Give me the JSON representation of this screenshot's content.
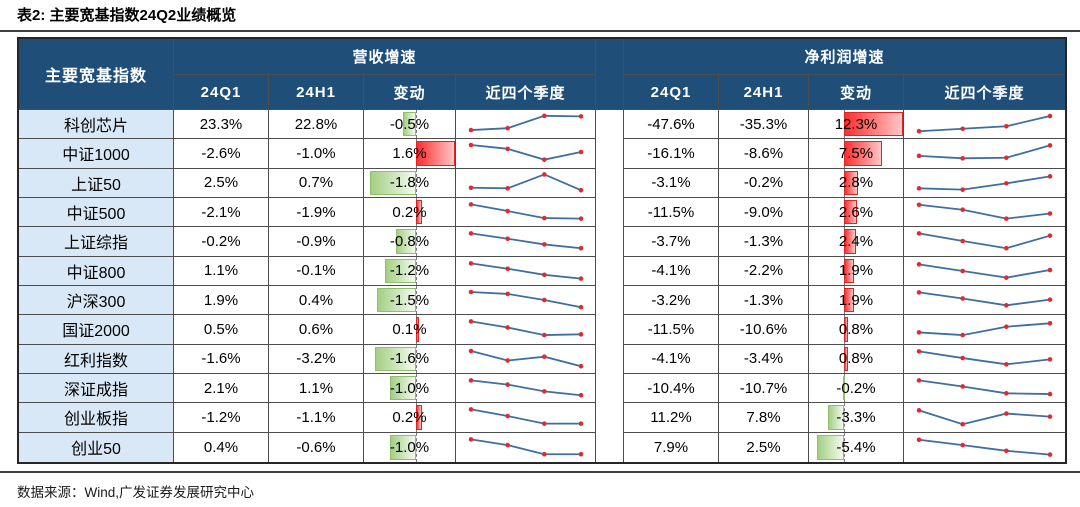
{
  "title": "表2:  主要宽基指数24Q2业绩概览",
  "source": "数据来源：Wind,广发证券发展研究中心",
  "colors": {
    "header_bg": "#1F4E79",
    "header_text": "#FFFFFF",
    "row_label_bg": "#D9E8F6",
    "bar_positive": "#FF2E2E",
    "bar_negative": "#A3CF83",
    "spark_line": "#3D6FA3",
    "spark_marker": "#DF2B30"
  },
  "table": {
    "index_header": "主要宽基指数",
    "groups": [
      {
        "title": "营收增速"
      },
      {
        "title": "净利润增速"
      }
    ],
    "subheaders": [
      "24Q1",
      "24H1",
      "变动",
      "近四个季度"
    ],
    "rows": [
      {
        "name": "科创芯片",
        "rev_q1": "23.3%",
        "rev_h1": "22.8%",
        "rev_chg": "-0.5%",
        "rev_spark": [
          0.18,
          0.28,
          0.93,
          0.9
        ],
        "np_q1": "-47.6%",
        "np_h1": "-35.3%",
        "np_chg": "12.3%",
        "np_spark": [
          0.12,
          0.25,
          0.38,
          0.92
        ]
      },
      {
        "name": "中证1000",
        "rev_q1": "-2.6%",
        "rev_h1": "-1.0%",
        "rev_chg": "1.6%",
        "rev_spark": [
          0.92,
          0.72,
          0.15,
          0.55
        ],
        "np_q1": "-16.1%",
        "np_h1": "-8.6%",
        "np_chg": "7.5%",
        "np_spark": [
          0.35,
          0.22,
          0.25,
          0.9
        ]
      },
      {
        "name": "上证50",
        "rev_q1": "2.5%",
        "rev_h1": "0.7%",
        "rev_chg": "-1.8%",
        "rev_spark": [
          0.25,
          0.22,
          0.95,
          0.12
        ],
        "np_q1": "-3.1%",
        "np_h1": "-0.2%",
        "np_chg": "2.8%",
        "np_spark": [
          0.22,
          0.15,
          0.48,
          0.85
        ]
      },
      {
        "name": "中证500",
        "rev_q1": "-2.1%",
        "rev_h1": "-1.9%",
        "rev_chg": "0.2%",
        "rev_spark": [
          0.9,
          0.55,
          0.18,
          0.15
        ],
        "np_q1": "-11.5%",
        "np_h1": "-9.0%",
        "np_chg": "2.6%",
        "np_spark": [
          0.88,
          0.62,
          0.15,
          0.42
        ]
      },
      {
        "name": "上证综指",
        "rev_q1": "-0.2%",
        "rev_h1": "-0.9%",
        "rev_chg": "-0.8%",
        "rev_spark": [
          0.9,
          0.62,
          0.32,
          0.12
        ],
        "np_q1": "-3.7%",
        "np_h1": "-1.3%",
        "np_chg": "2.4%",
        "np_spark": [
          0.9,
          0.5,
          0.12,
          0.78
        ]
      },
      {
        "name": "中证800",
        "rev_q1": "1.1%",
        "rev_h1": "-0.1%",
        "rev_chg": "-1.2%",
        "rev_spark": [
          0.9,
          0.62,
          0.3,
          0.1
        ],
        "np_q1": "-4.1%",
        "np_h1": "-2.2%",
        "np_chg": "1.9%",
        "np_spark": [
          0.85,
          0.5,
          0.15,
          0.55
        ]
      },
      {
        "name": "沪深300",
        "rev_q1": "1.9%",
        "rev_h1": "0.4%",
        "rev_chg": "-1.5%",
        "rev_spark": [
          0.92,
          0.82,
          0.5,
          0.12
        ],
        "np_q1": "-3.2%",
        "np_h1": "-1.3%",
        "np_chg": "1.9%",
        "np_spark": [
          0.9,
          0.58,
          0.22,
          0.52
        ]
      },
      {
        "name": "国证2000",
        "rev_q1": "0.5%",
        "rev_h1": "0.6%",
        "rev_chg": "0.1%",
        "rev_spark": [
          0.9,
          0.58,
          0.18,
          0.22
        ],
        "np_q1": "-11.5%",
        "np_h1": "-10.6%",
        "np_chg": "0.8%",
        "np_spark": [
          0.32,
          0.18,
          0.62,
          0.8
        ]
      },
      {
        "name": "红利指数",
        "rev_q1": "-1.6%",
        "rev_h1": "-3.2%",
        "rev_chg": "-1.6%",
        "rev_spark": [
          0.92,
          0.42,
          0.62,
          0.12
        ],
        "np_q1": "-4.1%",
        "np_h1": "-3.4%",
        "np_chg": "0.8%",
        "np_spark": [
          0.9,
          0.55,
          0.22,
          0.48
        ]
      },
      {
        "name": "深证成指",
        "rev_q1": "2.1%",
        "rev_h1": "1.1%",
        "rev_chg": "-1.0%",
        "rev_spark": [
          0.9,
          0.68,
          0.32,
          0.12
        ],
        "np_q1": "-10.4%",
        "np_h1": "-10.7%",
        "np_chg": "-0.2%",
        "np_spark": [
          0.9,
          0.58,
          0.22,
          0.18
        ]
      },
      {
        "name": "创业板指",
        "rev_q1": "-1.2%",
        "rev_h1": "-1.1%",
        "rev_chg": "0.2%",
        "rev_spark": [
          0.9,
          0.55,
          0.15,
          0.15
        ],
        "np_q1": "11.2%",
        "np_h1": "7.8%",
        "np_chg": "-3.3%",
        "np_spark": [
          0.85,
          0.12,
          0.68,
          0.52
        ]
      },
      {
        "name": "创业50",
        "rev_q1": "0.4%",
        "rev_h1": "-0.6%",
        "rev_chg": "-1.0%",
        "rev_spark": [
          0.9,
          0.6,
          0.12,
          0.12
        ],
        "np_q1": "7.9%",
        "np_h1": "2.5%",
        "np_chg": "-5.4%",
        "np_spark": [
          0.88,
          0.6,
          0.3,
          0.1
        ]
      }
    ]
  }
}
